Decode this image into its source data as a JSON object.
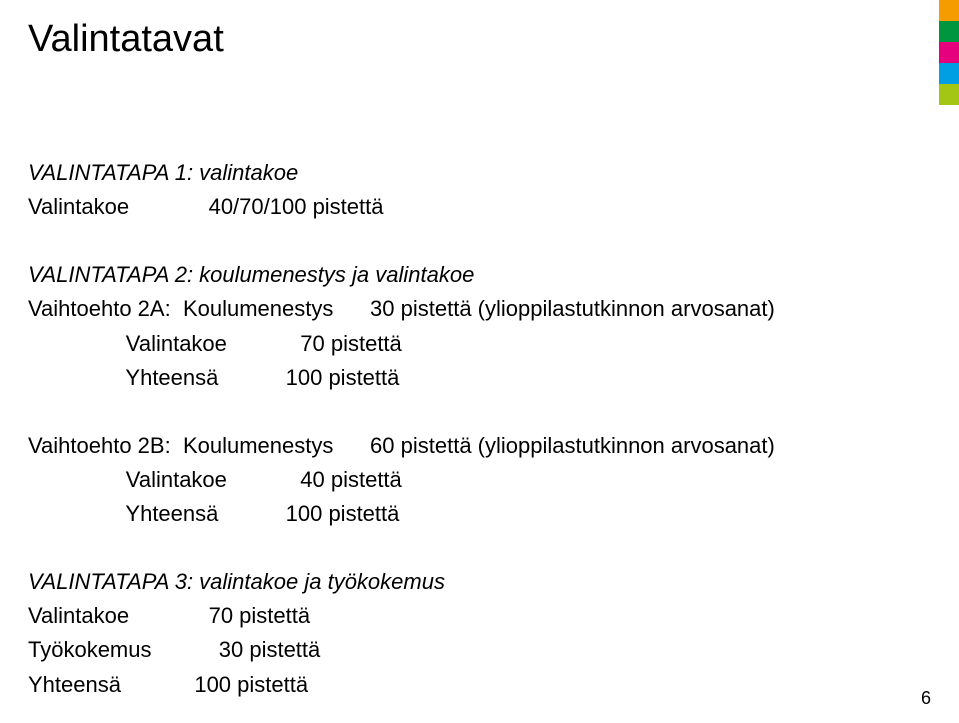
{
  "title": "Valintatavat",
  "sections": {
    "s1": {
      "heading": "VALINTATAPA 1: valintakoe",
      "row1_label": "Valintakoe",
      "row1_value": "40/70/100 pistettä"
    },
    "s2": {
      "heading": "VALINTATAPA 2: koulumenestys ja valintakoe",
      "a_label": "Vaihtoehto 2A:",
      "a_r1_label": "Koulumenestys",
      "a_r1_value": "30 pistettä (ylioppilastutkinnon arvosanat)",
      "a_r2_label": "Valintakoe",
      "a_r2_value": "70 pistettä",
      "a_r3_label": "Yhteensä",
      "a_r3_value": "100 pistettä",
      "b_label": "Vaihtoehto 2B:",
      "b_r1_label": "Koulumenestys",
      "b_r1_value": "60 pistettä (ylioppilastutkinnon arvosanat)",
      "b_r2_label": "Valintakoe",
      "b_r2_value": "40 pistettä",
      "b_r3_label": "Yhteensä",
      "b_r3_value": "100 pistettä"
    },
    "s3": {
      "heading": "VALINTATAPA 3: valintakoe ja työkokemus",
      "r1_label": "Valintakoe",
      "r1_value": "70 pistettä",
      "r2_label": "Työkokemus",
      "r2_value": "30 pistettä",
      "r3_label": "Yhteensä",
      "r3_value": "100 pistettä"
    }
  },
  "page_number": "6",
  "stripe_colors": [
    "#F59C00",
    "#009640",
    "#E6007E",
    "#009FE3",
    "#A3C614"
  ]
}
